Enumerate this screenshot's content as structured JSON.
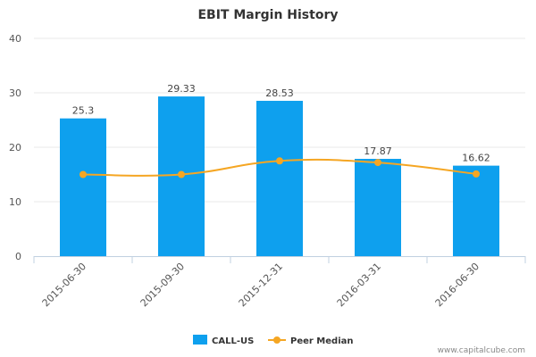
{
  "chart_data": {
    "type": "bar",
    "title": "EBIT Margin History",
    "categories": [
      "2015-06-30",
      "2015-09-30",
      "2015-12-31",
      "2016-03-31",
      "2016-06-30"
    ],
    "series": [
      {
        "name": "CALL-US",
        "type": "bar",
        "color": "#0ea0ee",
        "values": [
          25.3,
          29.33,
          28.53,
          17.87,
          16.62
        ],
        "labels": [
          "25.3",
          "29.33",
          "28.53",
          "17.87",
          "16.62"
        ]
      },
      {
        "name": "Peer Median",
        "type": "line",
        "color": "#f5a623",
        "values": [
          15.0,
          15.0,
          17.5,
          17.2,
          15.1
        ]
      }
    ],
    "y_ticks": [
      "0",
      "10",
      "20",
      "30",
      "40"
    ],
    "ylim": [
      0,
      40
    ],
    "xlabel": "",
    "ylabel": "",
    "grid": true,
    "legend_position": "bottom-center"
  },
  "credit": "www.capitalcube.com"
}
